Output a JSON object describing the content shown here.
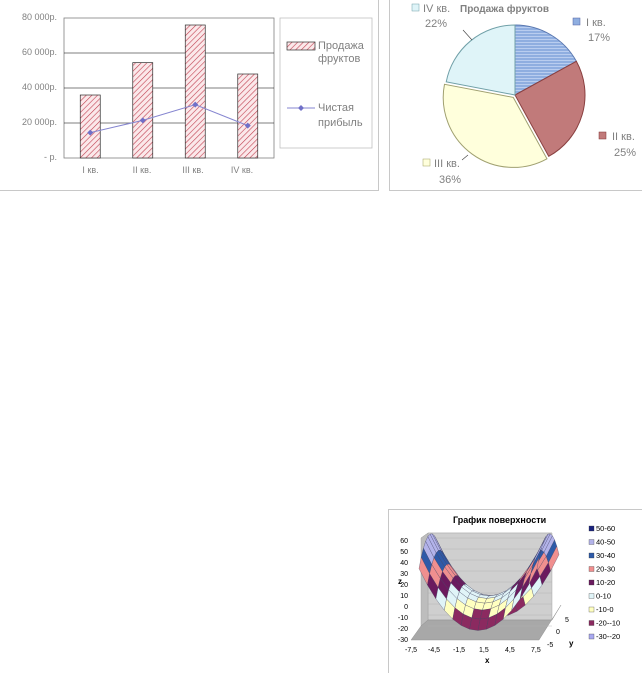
{
  "bar_chart": {
    "yticks": [
      "80 000р.",
      "60 000р.",
      "40 000р.",
      "20 000р.",
      "- р."
    ],
    "categories": [
      "I кв.",
      "II кв.",
      "III кв.",
      "IV кв."
    ],
    "legend": {
      "bar": [
        "Продажа",
        "фруктов"
      ],
      "line": [
        "Чистая",
        "прибыль"
      ]
    }
  },
  "pie_chart": {
    "title": "Продажа фруктов",
    "labels": [
      {
        "name": "I кв.",
        "pct": "17%"
      },
      {
        "name": "II кв.",
        "pct": "25%"
      },
      {
        "name": "III кв.",
        "pct": "36%"
      },
      {
        "name": "IV кв.",
        "pct": "22%"
      }
    ]
  },
  "surface_chart": {
    "title": "График поверхности",
    "zticks": [
      "60",
      "50",
      "40",
      "30",
      "20",
      "10",
      "0",
      "-10",
      "-20",
      "-30"
    ],
    "xticks": [
      "-7,5",
      "-4,5",
      "-1,5",
      "1,5",
      "4,5",
      "7,5"
    ],
    "yticks": [
      "5",
      "0",
      "-5"
    ],
    "zlabel": "z",
    "xlabel": "x",
    "ylabel": "y",
    "legend": [
      {
        "label": "50-60",
        "color": "#1a237e"
      },
      {
        "label": "40-50",
        "color": "#b3b3ea"
      },
      {
        "label": "30-40",
        "color": "#2e5aa8"
      },
      {
        "label": "20-30",
        "color": "#f08f8f"
      },
      {
        "label": "10-20",
        "color": "#6b1a5e"
      },
      {
        "label": "0-10",
        "color": "#e0f4f8"
      },
      {
        "label": "-10-0",
        "color": "#ffffc0"
      },
      {
        "label": "-20--10",
        "color": "#8b2a60"
      },
      {
        "label": "-30--20",
        "color": "#a9a9f0"
      }
    ]
  },
  "chart_data": [
    {
      "type": "bar",
      "categories": [
        "I кв.",
        "II кв.",
        "III кв.",
        "IV кв."
      ],
      "series": [
        {
          "name": "Продажа фруктов",
          "type": "bar",
          "values": [
            36000,
            54500,
            76000,
            48000
          ]
        },
        {
          "name": "Чистая прибыль",
          "type": "line",
          "values": [
            14500,
            21500,
            30500,
            18500
          ]
        }
      ],
      "ylim": [
        0,
        80000
      ],
      "grid": true,
      "legend": "right"
    },
    {
      "type": "pie",
      "title": "Продажа фруктов",
      "categories": [
        "I кв.",
        "II кв.",
        "III кв.",
        "IV кв."
      ],
      "values": [
        17,
        25,
        36,
        22
      ],
      "colors": [
        "#8faee0",
        "#c17a7a",
        "#ffffdc",
        "#dff4f8"
      ]
    },
    {
      "type": "surface",
      "title": "График поверхности",
      "function": "z = x^2 - y^2",
      "x": [
        -7.5,
        7.5
      ],
      "y": [
        -5,
        5
      ],
      "zlim": [
        -30,
        60
      ]
    }
  ]
}
